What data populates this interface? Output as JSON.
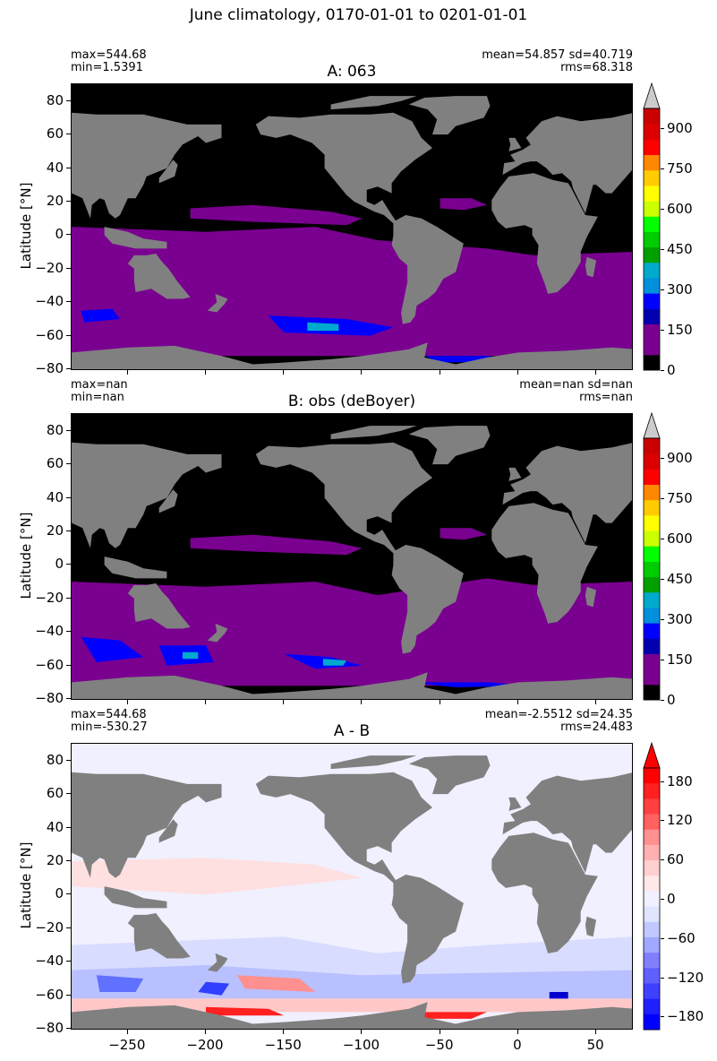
{
  "suptitle": "June climatology, 0170-01-01 to 0201-01-01",
  "colors": {
    "land": "#808080",
    "ocean_zero": "#000000",
    "purple": "#7a0090",
    "diff_zero": "#f0f0ff"
  },
  "chart_data": [
    {
      "type": "heatmap",
      "title": "A: 063",
      "stats_left": [
        "max=544.68",
        "min=1.5391"
      ],
      "stats_right": [
        "mean=54.857 sd=40.719",
        "rms=68.318"
      ],
      "ylabel": "Latitude [°N]",
      "yticks": [
        "80",
        "60",
        "40",
        "20",
        "0",
        "−20",
        "−40",
        "−60",
        "−80"
      ],
      "ylim": [
        -81,
        90
      ],
      "xlim": [
        -286,
        74
      ],
      "colorbar": {
        "ticks": [
          "0",
          "150",
          "300",
          "450",
          "600",
          "750",
          "900"
        ],
        "range": [
          0,
          975
        ],
        "extend": "max",
        "colors": [
          "#000000",
          "#7a0090",
          "#7a0090",
          "#0000b0",
          "#0000ff",
          "#0090dd",
          "#00aacc",
          "#00a000",
          "#00cc00",
          "#00ff00",
          "#ccff00",
          "#ffff00",
          "#ffcc00",
          "#ff8800",
          "#ff0000",
          "#dd0000",
          "#cc0000"
        ]
      }
    },
    {
      "type": "heatmap",
      "title": "B: obs (deBoyer)",
      "stats_left": [
        "max=nan",
        "min=nan"
      ],
      "stats_right": [
        "mean=nan sd=nan",
        "rms=nan"
      ],
      "ylabel": "Latitude [°N]",
      "yticks": [
        "80",
        "60",
        "40",
        "20",
        "0",
        "−20",
        "−40",
        "−60",
        "−80"
      ],
      "ylim": [
        -81,
        90
      ],
      "xlim": [
        -286,
        74
      ],
      "colorbar": {
        "ticks": [
          "0",
          "150",
          "300",
          "450",
          "600",
          "750",
          "900"
        ],
        "range": [
          0,
          975
        ],
        "extend": "max"
      }
    },
    {
      "type": "heatmap",
      "title": "A - B",
      "stats_left": [
        "max=544.68",
        "min=-530.27"
      ],
      "stats_right": [
        "mean=-2.5512 sd=24.35",
        "rms=24.483"
      ],
      "ylabel": "Latitude [°N]",
      "yticks": [
        "80",
        "60",
        "40",
        "20",
        "0",
        "−20",
        "−40",
        "−60",
        "−80"
      ],
      "ylim": [
        -81,
        90
      ],
      "xlim": [
        -286,
        74
      ],
      "xticks": [
        "−250",
        "−200",
        "−150",
        "−100",
        "−50",
        "0",
        "50"
      ],
      "xtick_values": [
        -250,
        -200,
        -150,
        -100,
        -50,
        0,
        50
      ],
      "colorbar": {
        "ticks": [
          "180",
          "120",
          "60",
          "0",
          "−60",
          "−120",
          "−180"
        ],
        "tick_values": [
          180,
          120,
          60,
          0,
          -60,
          -120,
          -180
        ],
        "range": [
          -200,
          200
        ],
        "extend": "both"
      }
    }
  ]
}
